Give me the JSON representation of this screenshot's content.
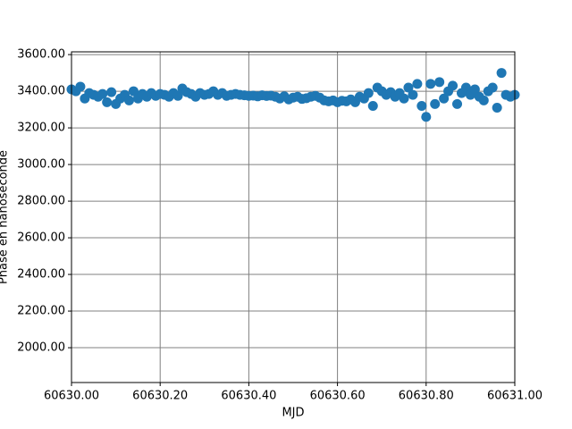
{
  "chart_data": {
    "type": "scatter",
    "xlabel": "MJD",
    "ylabel": "Phase en nanoseconde",
    "color": "#1f77b4",
    "grid": true,
    "xlim": [
      60630,
      60631
    ],
    "xticks": [
      {
        "value": 60630,
        "label": "60630.00"
      },
      {
        "value": 60630.2,
        "label": "60630.20"
      },
      {
        "value": 60630.4,
        "label": "60630.40"
      },
      {
        "value": 60630.6,
        "label": "60630.60"
      },
      {
        "value": 60630.8,
        "label": "60630.80"
      },
      {
        "value": 60631,
        "label": "60631.00"
      }
    ],
    "ylim": [
      1810,
      3615
    ],
    "yticks": [
      {
        "value": 2000,
        "label": "2000.00"
      },
      {
        "value": 2200,
        "label": "2200.00"
      },
      {
        "value": 2400,
        "label": "2400.00"
      },
      {
        "value": 2600,
        "label": "2600.00"
      },
      {
        "value": 2800,
        "label": "2800.00"
      },
      {
        "value": 3000,
        "label": "3000.00"
      },
      {
        "value": 3200,
        "label": "3200.00"
      },
      {
        "value": 3400,
        "label": "3400.00"
      },
      {
        "value": 3600,
        "label": "3600.00"
      }
    ],
    "x": [
      60630.0,
      60630.01,
      60630.02,
      60630.03,
      60630.04,
      60630.05,
      60630.06,
      60630.07,
      60630.08,
      60630.09,
      60630.1,
      60630.11,
      60630.12,
      60630.13,
      60630.14,
      60630.15,
      60630.16,
      60630.17,
      60630.18,
      60630.19,
      60630.2,
      60630.21,
      60630.22,
      60630.23,
      60630.24,
      60630.25,
      60630.26,
      60630.27,
      60630.28,
      60630.29,
      60630.3,
      60630.31,
      60630.32,
      60630.33,
      60630.34,
      60630.35,
      60630.36,
      60630.37,
      60630.38,
      60630.39,
      60630.4,
      60630.41,
      60630.42,
      60630.43,
      60630.44,
      60630.45,
      60630.46,
      60630.47,
      60630.48,
      60630.49,
      60630.5,
      60630.51,
      60630.52,
      60630.53,
      60630.54,
      60630.55,
      60630.56,
      60630.57,
      60630.58,
      60630.59,
      60630.6,
      60630.61,
      60630.62,
      60630.63,
      60630.64,
      60630.65,
      60630.66,
      60630.67,
      60630.68,
      60630.69,
      60630.7,
      60630.71,
      60630.72,
      60630.73,
      60630.74,
      60630.75,
      60630.76,
      60630.77,
      60630.78,
      60630.79,
      60630.8,
      60630.81,
      60630.82,
      60630.83,
      60630.84,
      60630.85,
      60630.86,
      60630.87,
      60630.88,
      60630.89,
      60630.9,
      60630.91,
      60630.92,
      60630.93,
      60630.94,
      60630.95,
      60630.96,
      60630.97,
      60630.98,
      60630.99,
      60631.0
    ],
    "values": [
      3410,
      3400,
      3425,
      3360,
      3390,
      3380,
      3370,
      3385,
      3340,
      3395,
      3330,
      3360,
      3380,
      3350,
      3400,
      3360,
      3385,
      3370,
      3390,
      3375,
      3385,
      3380,
      3370,
      3390,
      3375,
      3415,
      3395,
      3385,
      3370,
      3390,
      3380,
      3385,
      3400,
      3380,
      3390,
      3375,
      3380,
      3385,
      3380,
      3378,
      3375,
      3376,
      3372,
      3378,
      3374,
      3376,
      3370,
      3360,
      3372,
      3355,
      3365,
      3370,
      3358,
      3362,
      3370,
      3375,
      3365,
      3350,
      3345,
      3350,
      3340,
      3348,
      3345,
      3355,
      3340,
      3370,
      3360,
      3390,
      3320,
      3420,
      3400,
      3380,
      3395,
      3370,
      3390,
      3360,
      3420,
      3380,
      3440,
      3320,
      3260,
      3440,
      3330,
      3450,
      3360,
      3400,
      3430,
      3330,
      3390,
      3420,
      3380,
      3410,
      3370,
      3350,
      3400,
      3420,
      3310,
      3500,
      3380,
      3370,
      3380
    ]
  }
}
